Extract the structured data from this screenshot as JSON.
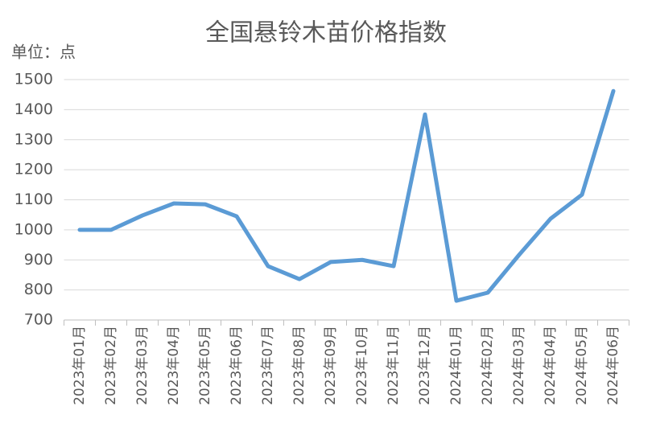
{
  "chart_data": {
    "type": "line",
    "title": "全国悬铃木苗价格指数",
    "unit": "单位：点",
    "categories": [
      "2023年01月",
      "2023年02月",
      "2023年03月",
      "2023年04月",
      "2023年05月",
      "2023年06月",
      "2023年07月",
      "2023年08月",
      "2023年09月",
      "2023年10月",
      "2023年11月",
      "2023年12月",
      "2024年01月",
      "2024年02月",
      "2024年03月",
      "2024年04月",
      "2024年05月",
      "2024年06月"
    ],
    "values": [
      1000,
      1000,
      1048,
      1088,
      1085,
      1045,
      879,
      836,
      893,
      900,
      879,
      1384,
      764,
      791,
      917,
      1037,
      1117,
      1462
    ],
    "color": "#5b9bd5",
    "ylim": [
      700,
      1500
    ],
    "yticks": [
      700,
      800,
      900,
      1000,
      1100,
      1200,
      1300,
      1400,
      1500
    ],
    "grid": true
  }
}
